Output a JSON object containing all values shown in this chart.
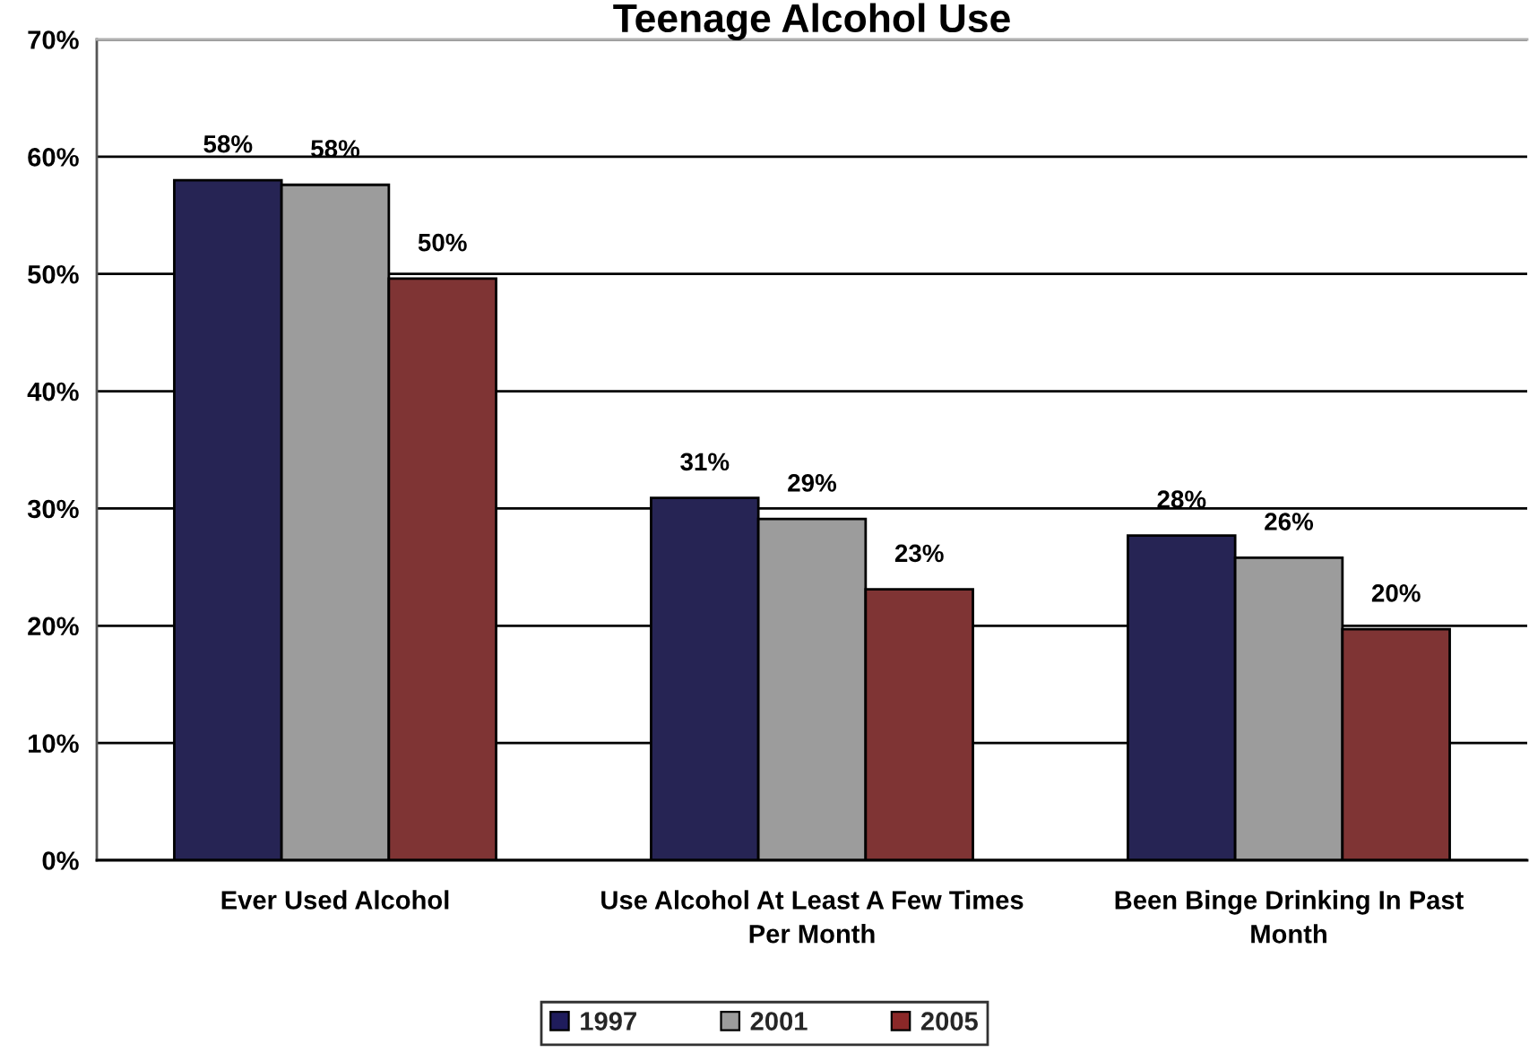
{
  "chart_data": {
    "type": "bar",
    "title": "Teenage Alcohol Use",
    "categories": [
      "Ever Used Alcohol",
      "Use Alcohol At Least A Few Times\nPer Month",
      "Been Binge Drinking In Past\nMonth"
    ],
    "series": [
      {
        "name": "1997",
        "color": "#1f1c5c",
        "values": [
          58.0,
          30.9,
          27.7
        ],
        "value_labels": [
          "58%",
          "31%",
          "28%"
        ]
      },
      {
        "name": "2001",
        "color": "#9c9c9c",
        "values": [
          57.6,
          29.1,
          25.8
        ],
        "value_labels": [
          "58%",
          "29%",
          "26%"
        ]
      },
      {
        "name": "2005",
        "color": "#8b2828",
        "values": [
          49.6,
          23.1,
          19.7
        ],
        "value_labels": [
          "50%",
          "23%",
          "20%"
        ]
      }
    ],
    "ylim": [
      0,
      70
    ],
    "yticks": [
      {
        "value": 0,
        "label": "0%"
      },
      {
        "value": 10,
        "label": "10%"
      },
      {
        "value": 20,
        "label": "20%"
      },
      {
        "value": 30,
        "label": "30%"
      },
      {
        "value": 40,
        "label": "40%"
      },
      {
        "value": 50,
        "label": "50%"
      },
      {
        "value": 60,
        "label": "60%"
      },
      {
        "value": 70,
        "label": "70%"
      }
    ],
    "grid": "y",
    "legend": "bottom"
  }
}
